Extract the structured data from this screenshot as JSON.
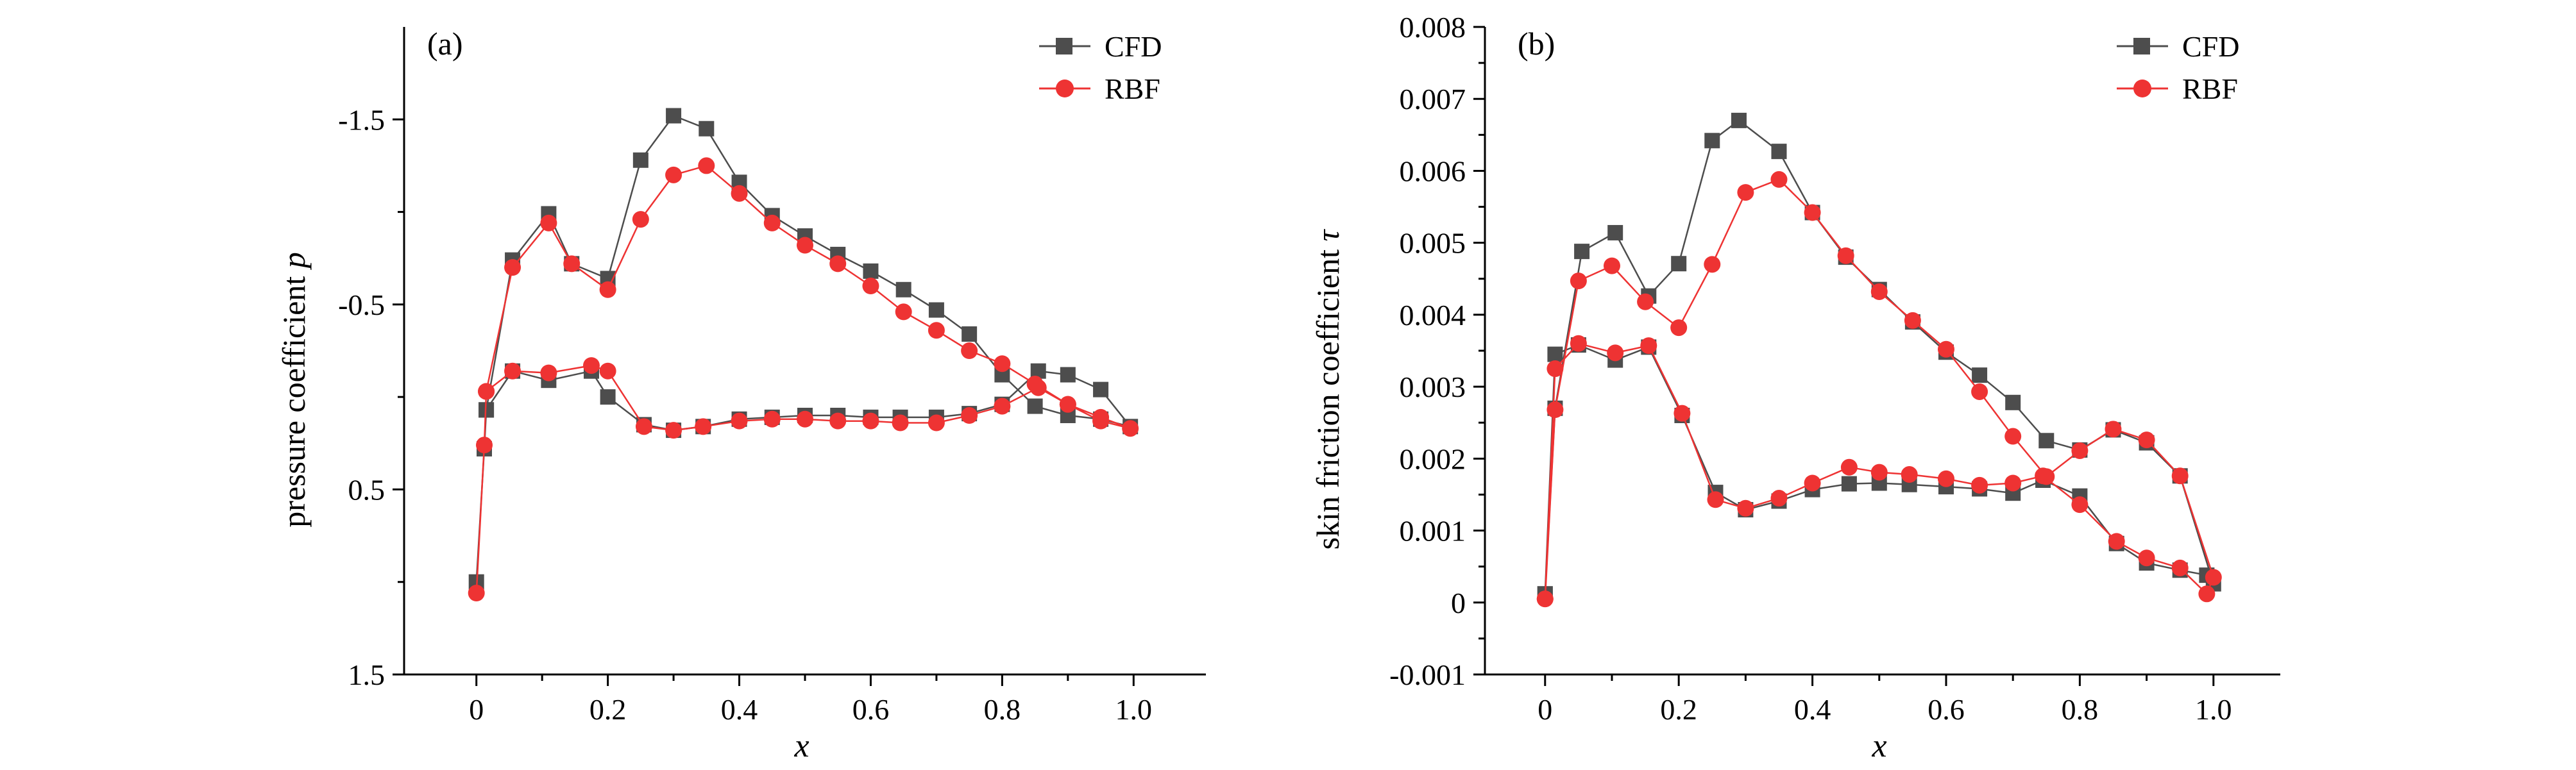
{
  "chart_data": [
    {
      "type": "line",
      "panel_label": "(a)",
      "xlabel": "x",
      "ylabel": "pressure coefficient",
      "ylabel_symbol": "p",
      "xlim": [
        -0.11,
        1.11
      ],
      "ylim": [
        1.5,
        -2.0
      ],
      "y_inverted": true,
      "xticks": [
        0,
        0.2,
        0.4,
        0.6,
        0.8,
        1.0
      ],
      "xtick_labels": [
        "0",
        "0.2",
        "0.4",
        "0.6",
        "0.8",
        "1.0"
      ],
      "yticks": [
        -1.5,
        -0.5,
        0.5,
        1.5
      ],
      "ytick_labels": [
        "-1.5",
        "-0.5",
        "0.5",
        "1.5"
      ],
      "grid": false,
      "legend_position": "top-right",
      "series": [
        {
          "name": "CFD",
          "color": "#4d4d4d",
          "marker": "square",
          "x": [
            0.0,
            0.012,
            0.015,
            0.055,
            0.11,
            0.175,
            0.2,
            0.255,
            0.3,
            0.345,
            0.4,
            0.45,
            0.5,
            0.55,
            0.6,
            0.645,
            0.7,
            0.75,
            0.8,
            0.855,
            0.9,
            0.95,
            0.995,
            0.95,
            0.9,
            0.85,
            0.8,
            0.75,
            0.7,
            0.65,
            0.6,
            0.55,
            0.5,
            0.45,
            0.4,
            0.35,
            0.3,
            0.25,
            0.2,
            0.145,
            0.11,
            0.055,
            0.015
          ],
          "y": [
            1.0,
            0.28,
            0.07,
            -0.14,
            -0.09,
            -0.14,
            0.0,
            0.15,
            0.18,
            0.16,
            0.12,
            0.11,
            0.1,
            0.1,
            0.11,
            0.11,
            0.11,
            0.09,
            0.04,
            -0.14,
            -0.12,
            -0.04,
            0.16,
            0.12,
            0.1,
            0.05,
            -0.12,
            -0.34,
            -0.47,
            -0.58,
            -0.68,
            -0.77,
            -0.87,
            -0.98,
            -1.16,
            -1.45,
            -1.52,
            -1.28,
            -0.64,
            -0.72,
            -0.99,
            -0.74,
            0.07
          ]
        },
        {
          "name": "RBF",
          "color": "#ee3333",
          "marker": "circle",
          "x": [
            0.0,
            0.012,
            0.015,
            0.055,
            0.11,
            0.175,
            0.2,
            0.255,
            0.3,
            0.345,
            0.4,
            0.45,
            0.5,
            0.55,
            0.6,
            0.645,
            0.7,
            0.75,
            0.8,
            0.855,
            0.9,
            0.95,
            0.995,
            0.95,
            0.9,
            0.85,
            0.8,
            0.75,
            0.7,
            0.65,
            0.6,
            0.55,
            0.5,
            0.45,
            0.4,
            0.35,
            0.3,
            0.25,
            0.2,
            0.145,
            0.11,
            0.055,
            0.015
          ],
          "y": [
            1.06,
            0.26,
            -0.03,
            -0.14,
            -0.13,
            -0.17,
            -0.14,
            0.16,
            0.18,
            0.16,
            0.13,
            0.12,
            0.12,
            0.13,
            0.13,
            0.14,
            0.14,
            0.1,
            0.05,
            -0.05,
            0.04,
            0.13,
            0.17,
            0.11,
            0.04,
            -0.07,
            -0.18,
            -0.25,
            -0.36,
            -0.46,
            -0.6,
            -0.72,
            -0.82,
            -0.94,
            -1.1,
            -1.25,
            -1.2,
            -0.96,
            -0.58,
            -0.72,
            -0.94,
            -0.7,
            -0.03
          ]
        }
      ]
    },
    {
      "type": "line",
      "panel_label": "(b)",
      "xlabel": "x",
      "ylabel": "skin friction coefficient",
      "ylabel_symbol": "τ",
      "xlim": [
        -0.09,
        1.1
      ],
      "ylim": [
        -0.001,
        0.008
      ],
      "y_inverted": false,
      "xticks": [
        0,
        0.2,
        0.4,
        0.6,
        0.8,
        1.0
      ],
      "xtick_labels": [
        "0",
        "0.2",
        "0.4",
        "0.6",
        "0.8",
        "1.0"
      ],
      "yticks": [
        -0.001,
        0,
        0.001,
        0.002,
        0.003,
        0.004,
        0.005,
        0.006,
        0.007,
        0.008
      ],
      "ytick_labels": [
        "-0.001",
        "0",
        "0.001",
        "0.002",
        "0.003",
        "0.004",
        "0.005",
        "0.006",
        "0.007",
        "0.008"
      ],
      "grid": false,
      "legend_position": "top-right",
      "series": [
        {
          "name": "CFD",
          "color": "#4d4d4d",
          "marker": "square",
          "x": [
            0.0,
            0.015,
            0.05,
            0.105,
            0.155,
            0.205,
            0.255,
            0.3,
            0.35,
            0.4,
            0.455,
            0.5,
            0.545,
            0.6,
            0.65,
            0.7,
            0.745,
            0.8,
            0.855,
            0.9,
            0.95,
            0.99,
            1.0,
            0.95,
            0.9,
            0.85,
            0.8,
            0.75,
            0.7,
            0.65,
            0.6,
            0.55,
            0.5,
            0.45,
            0.4,
            0.35,
            0.29,
            0.25,
            0.2,
            0.155,
            0.105,
            0.055,
            0.015,
            0.0
          ],
          "y": [
            0.00012,
            0.00345,
            0.00358,
            0.00337,
            0.00355,
            0.0026,
            0.00153,
            0.00129,
            0.00141,
            0.00157,
            0.00165,
            0.00166,
            0.00164,
            0.00161,
            0.00158,
            0.00152,
            0.0017,
            0.00148,
            0.00082,
            0.00055,
            0.00045,
            0.00038,
            0.00026,
            0.00176,
            0.00222,
            0.0024,
            0.00212,
            0.00225,
            0.00278,
            0.00316,
            0.00348,
            0.0039,
            0.00435,
            0.0048,
            0.00542,
            0.00627,
            0.0067,
            0.00642,
            0.00471,
            0.00426,
            0.00514,
            0.00488,
            0.0027,
            0.00012
          ]
        },
        {
          "name": "RBF",
          "color": "#ee3333",
          "marker": "circle",
          "x": [
            0.0,
            0.015,
            0.05,
            0.105,
            0.155,
            0.205,
            0.255,
            0.3,
            0.35,
            0.4,
            0.455,
            0.5,
            0.545,
            0.6,
            0.65,
            0.7,
            0.745,
            0.8,
            0.855,
            0.9,
            0.95,
            0.99,
            1.0,
            0.95,
            0.9,
            0.85,
            0.8,
            0.75,
            0.7,
            0.65,
            0.6,
            0.55,
            0.5,
            0.45,
            0.4,
            0.35,
            0.3,
            0.25,
            0.2,
            0.15,
            0.1,
            0.05,
            0.015,
            0.0
          ],
          "y": [
            5e-05,
            0.00325,
            0.0036,
            0.00347,
            0.00357,
            0.00263,
            0.00143,
            0.00131,
            0.00145,
            0.00166,
            0.00188,
            0.00181,
            0.00178,
            0.00172,
            0.00163,
            0.00166,
            0.00176,
            0.00136,
            0.00085,
            0.00062,
            0.00048,
            0.00012,
            0.00035,
            0.00176,
            0.00226,
            0.00241,
            0.00211,
            0.00175,
            0.00231,
            0.00293,
            0.00352,
            0.00392,
            0.00432,
            0.00482,
            0.00542,
            0.00588,
            0.0057,
            0.0047,
            0.00382,
            0.00418,
            0.00468,
            0.00447,
            0.00268,
            5e-05
          ]
        }
      ]
    }
  ]
}
